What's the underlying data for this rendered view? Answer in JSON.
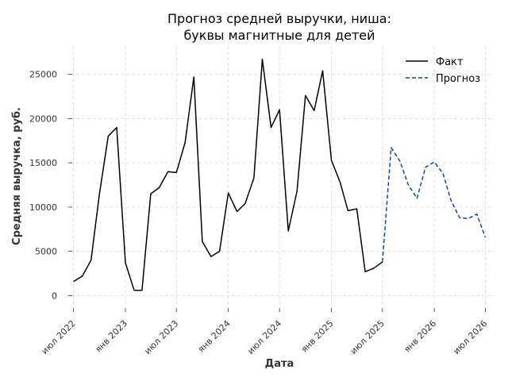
{
  "chart_data": {
    "type": "line",
    "title_lines": [
      "Прогноз средней выручки, ниша:",
      "буквы магнитные для детей"
    ],
    "xlabel": "Дата",
    "ylabel": "Средняя выручка, руб.",
    "x_range": [
      "2022-06-01",
      "2026-07-31"
    ],
    "ylim": [
      -1400,
      28200
    ],
    "y_ticks": [
      0,
      5000,
      10000,
      15000,
      20000,
      25000
    ],
    "x_ticks": [
      {
        "date": "2022-07-01",
        "label": "июл 2022"
      },
      {
        "date": "2023-01-01",
        "label": "янв 2023"
      },
      {
        "date": "2023-07-01",
        "label": "июл 2023"
      },
      {
        "date": "2024-01-01",
        "label": "янв 2024"
      },
      {
        "date": "2024-07-01",
        "label": "июл 2024"
      },
      {
        "date": "2025-01-01",
        "label": "янв 2025"
      },
      {
        "date": "2025-07-01",
        "label": "июл 2025"
      },
      {
        "date": "2026-01-01",
        "label": "янв 2026"
      },
      {
        "date": "2026-07-01",
        "label": "июл 2026"
      }
    ],
    "grid": true,
    "legend_position": "top-right",
    "series": [
      {
        "name": "Факт",
        "color": "#000000",
        "style": "solid",
        "x": [
          "2022-07-01",
          "2022-08-01",
          "2022-09-01",
          "2022-10-01",
          "2022-11-01",
          "2022-12-01",
          "2023-01-01",
          "2023-02-01",
          "2023-03-01",
          "2023-04-01",
          "2023-05-01",
          "2023-06-01",
          "2023-07-01",
          "2023-08-01",
          "2023-09-01",
          "2023-10-01",
          "2023-11-01",
          "2023-12-01",
          "2024-01-01",
          "2024-02-01",
          "2024-03-01",
          "2024-04-01",
          "2024-05-01",
          "2024-06-01",
          "2024-07-01",
          "2024-08-01",
          "2024-09-01",
          "2024-10-01",
          "2024-11-01",
          "2024-12-01",
          "2025-01-01",
          "2025-02-01",
          "2025-03-01",
          "2025-04-01",
          "2025-05-01",
          "2025-06-01",
          "2025-07-01"
        ],
        "y": [
          1600,
          2200,
          4000,
          11500,
          18000,
          19000,
          3700,
          600,
          600,
          11500,
          12200,
          14000,
          13900,
          17300,
          24700,
          6100,
          4400,
          5000,
          11600,
          9500,
          10400,
          13300,
          26700,
          19000,
          21000,
          7300,
          11800,
          22600,
          20900,
          25400,
          15300,
          12800,
          9600,
          9800,
          2700,
          3100,
          3800
        ]
      },
      {
        "name": "Прогноз",
        "color": "#0047cc",
        "style": "dashed",
        "x": [
          "2025-07-01",
          "2025-08-01",
          "2025-09-01",
          "2025-10-01",
          "2025-11-01",
          "2025-12-01",
          "2026-01-01",
          "2026-02-01",
          "2026-03-01",
          "2026-04-01",
          "2026-05-01",
          "2026-06-01",
          "2026-07-01"
        ],
        "y": [
          3800,
          16700,
          15200,
          12500,
          11000,
          14500,
          15100,
          13800,
          10800,
          8800,
          8700,
          9200,
          6600
        ]
      }
    ]
  }
}
